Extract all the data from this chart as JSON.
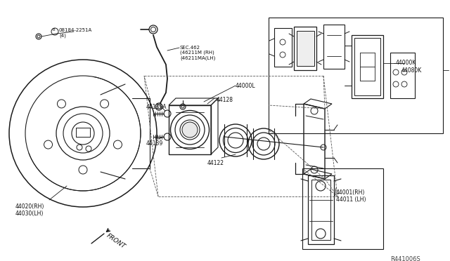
{
  "bg_color": "#ffffff",
  "diagram_color": "#1a1a1a",
  "ref_code": "R441006S",
  "labels": {
    "bolt": "08184-2251A\n(4)",
    "sec": "SEC.462\n(46211M (RH)\n(46211MA(LH)",
    "part_44139A": "44139A",
    "part_44128": "44128",
    "part_44000L": "44000L",
    "part_44139": "44139",
    "part_44122": "44122",
    "part_44020": "44020(RH)\n44030(LH)",
    "part_44000K": "44000K",
    "part_44080K": "44080K",
    "part_44001": "44001(RH)\n44011 (LH)",
    "front": "FRONT"
  }
}
